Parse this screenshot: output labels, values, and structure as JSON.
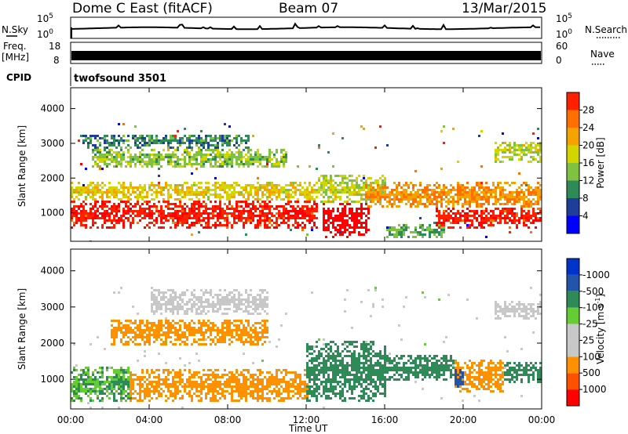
{
  "header": {
    "station": "Dome C East (fitACF)",
    "beam": "Beam 07",
    "date": "13/Mar/2015"
  },
  "noise_panel": {
    "label": "N.Sky",
    "left_ticks": [
      "10^5",
      "10^0"
    ],
    "right_ticks": [
      "10^5",
      "10^0"
    ],
    "right_label": "N.Search"
  },
  "freq_panel": {
    "label_line1": "Freq.",
    "label_line2": "[MHz]",
    "left_ticks": [
      "18",
      "8"
    ],
    "right_ticks": [
      "60",
      "0"
    ],
    "right_label": "Nave"
  },
  "cpid": {
    "label": "CPID",
    "value": "twofsound 3501"
  },
  "colors": {
    "power_scale": [
      "#0000ff",
      "#1f3d9a",
      "#2e8b57",
      "#7fc241",
      "#d4d400",
      "#f4a300",
      "#ff7000",
      "#ff2000",
      "#ff0000"
    ],
    "velocity_scale": [
      "#ff0000",
      "#ff5000",
      "#ff9000",
      "#c8c8c8",
      "#c8c8c8",
      "#66cc33",
      "#2e8b57",
      "#2255aa",
      "#0033cc"
    ],
    "ground_scatter": "#bebebe"
  },
  "chart_data": [
    {
      "type": "heatmap",
      "title": "",
      "xlabel": "",
      "ylabel": "Slant Range [km]",
      "x_ticks": [
        "00:00",
        "04:00",
        "08:00",
        "12:00",
        "16:00",
        "20:00",
        "00:00"
      ],
      "xlim_hours": [
        0,
        24
      ],
      "y_ticks": [
        1000,
        2000,
        3000,
        4000
      ],
      "ylim": [
        180,
        4600
      ],
      "colorbar": {
        "label": "Power [dB]",
        "ticks": [
          4,
          8,
          12,
          16,
          20,
          24,
          28
        ],
        "range": [
          0,
          30
        ]
      },
      "regions": [
        {
          "x": [
            0.0,
            12.5
          ],
          "y": [
            600,
            1400
          ],
          "value": 26
        },
        {
          "x": [
            0.0,
            12.5
          ],
          "y": [
            1400,
            1900
          ],
          "value": 16
        },
        {
          "x": [
            1.0,
            11.0
          ],
          "y": [
            2300,
            2900
          ],
          "value": 12
        },
        {
          "x": [
            0.5,
            9.0
          ],
          "y": [
            2900,
            3300
          ],
          "value": 8
        },
        {
          "x": [
            12.8,
            15.2
          ],
          "y": [
            300,
            1300
          ],
          "value": 30
        },
        {
          "x": [
            12.5,
            16.0
          ],
          "y": [
            1300,
            2100
          ],
          "value": 14
        },
        {
          "x": [
            15.0,
            24.0
          ],
          "y": [
            1200,
            1900
          ],
          "value": 20
        },
        {
          "x": [
            18.5,
            24.0
          ],
          "y": [
            600,
            1200
          ],
          "value": 26
        },
        {
          "x": [
            16.0,
            19.0
          ],
          "y": [
            300,
            700
          ],
          "value": 10
        },
        {
          "x": [
            21.5,
            24.0
          ],
          "y": [
            2500,
            3100
          ],
          "value": 14
        }
      ]
    },
    {
      "type": "heatmap",
      "title": "",
      "xlabel": "Time UT",
      "ylabel": "Slant Range [km]",
      "x_ticks": [
        "00:00",
        "04:00",
        "08:00",
        "12:00",
        "16:00",
        "20:00",
        "00:00"
      ],
      "xlim_hours": [
        0,
        24
      ],
      "y_ticks": [
        1000,
        2000,
        3000,
        4000
      ],
      "ylim": [
        180,
        4600
      ],
      "colorbar": {
        "label": "Velocity [m s^-1]",
        "ticks": [
          1000,
          500,
          100,
          25,
          -25,
          -100,
          -500,
          -1000
        ]
      },
      "regions": [
        {
          "x": [
            0.0,
            3.0
          ],
          "y": [
            400,
            1400
          ],
          "value": 100
        },
        {
          "x": [
            3.0,
            12.0
          ],
          "y": [
            400,
            1300
          ],
          "value": -300
        },
        {
          "x": [
            2.0,
            10.0
          ],
          "y": [
            2000,
            2700
          ],
          "value": -200
        },
        {
          "x": [
            4.0,
            10.0
          ],
          "y": [
            2800,
            3500
          ],
          "value": 0
        },
        {
          "x": [
            12.0,
            16.0
          ],
          "y": [
            400,
            2100
          ],
          "value": 200
        },
        {
          "x": [
            15.5,
            19.5
          ],
          "y": [
            1000,
            1700
          ],
          "value": 200
        },
        {
          "x": [
            19.5,
            22.0
          ],
          "y": [
            700,
            1600
          ],
          "value": -400
        },
        {
          "x": [
            19.5,
            20.0
          ],
          "y": [
            800,
            1300
          ],
          "value": 800
        },
        {
          "x": [
            21.5,
            24.0
          ],
          "y": [
            2700,
            3200
          ],
          "value": 0
        },
        {
          "x": [
            22.0,
            24.0
          ],
          "y": [
            900,
            1500
          ],
          "value": 200
        }
      ]
    }
  ]
}
